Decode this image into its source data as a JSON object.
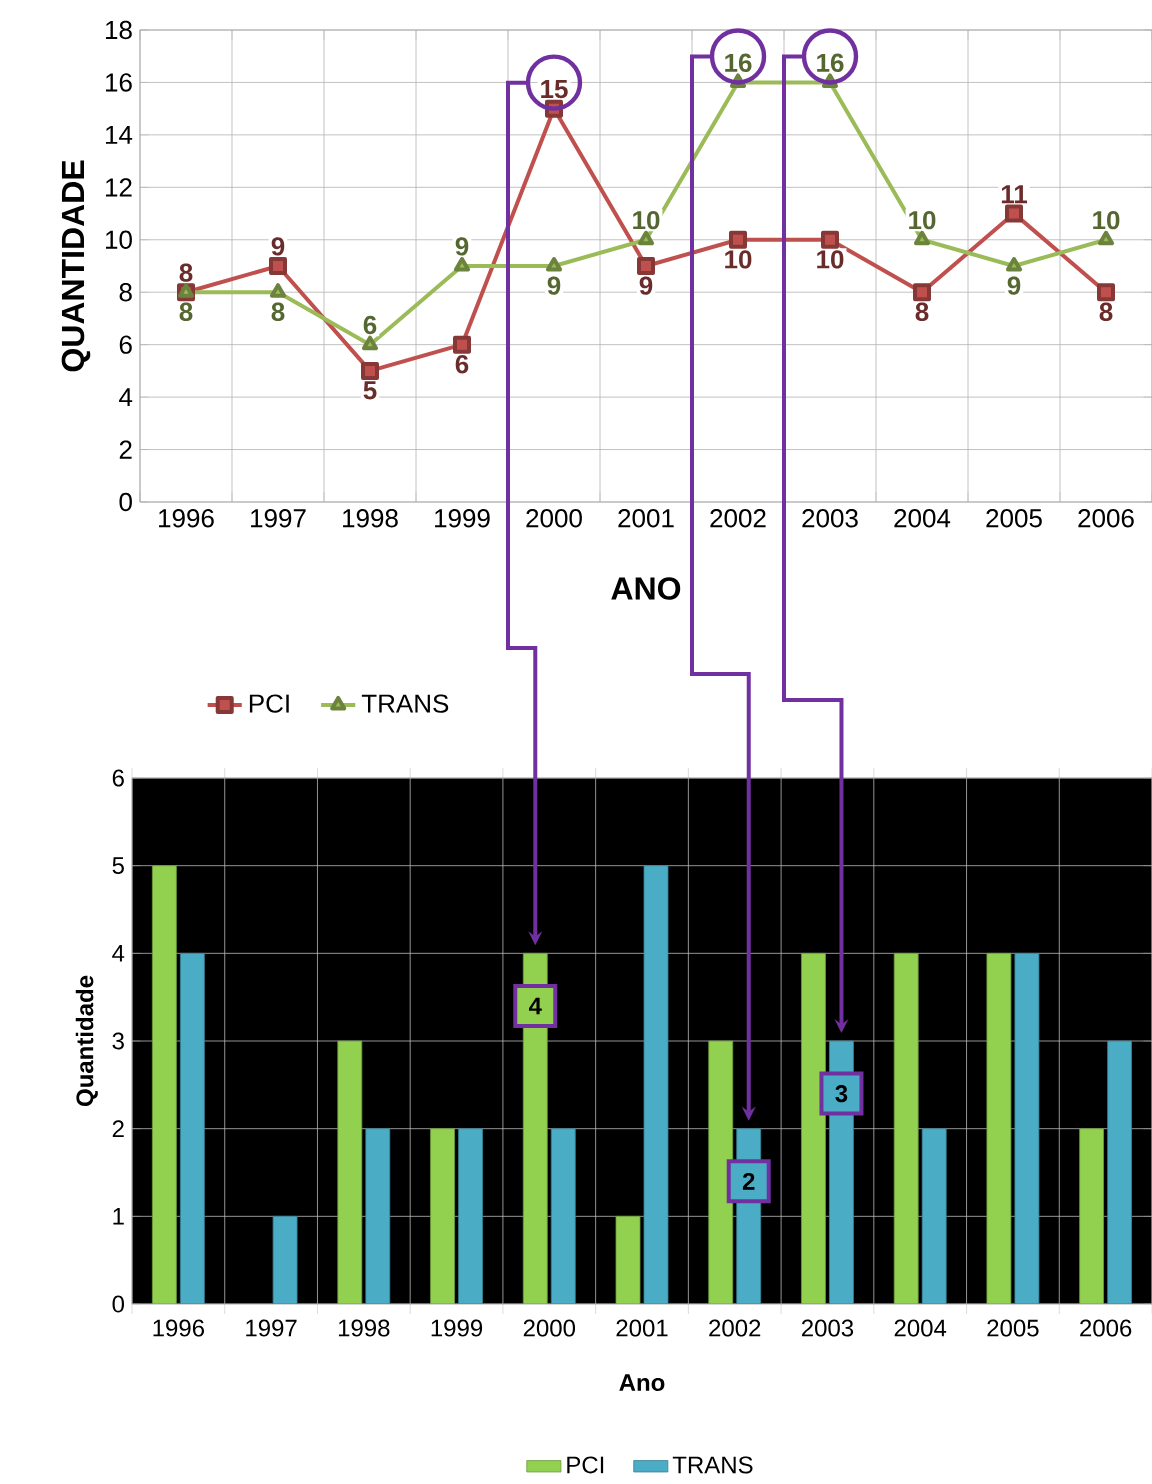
{
  "chart_data": [
    {
      "type": "line",
      "xlabel": "ANO",
      "ylabel": "QUANTIDADE",
      "categories": [
        "1996",
        "1997",
        "1998",
        "1999",
        "2000",
        "2001",
        "2002",
        "2003",
        "2004",
        "2005",
        "2006"
      ],
      "series": [
        {
          "name": "PCI",
          "color": "#c0504d",
          "marker": "square",
          "values": [
            8,
            9,
            5,
            6,
            15,
            9,
            10,
            10,
            8,
            11,
            8
          ]
        },
        {
          "name": "TRANS",
          "color": "#9bbb59",
          "marker": "triangle",
          "values": [
            8,
            8,
            6,
            9,
            9,
            10,
            16,
            16,
            10,
            9,
            10
          ]
        }
      ],
      "ylim": [
        0,
        18
      ],
      "yticks": [
        0,
        2,
        4,
        6,
        8,
        10,
        12,
        14,
        16,
        18
      ],
      "grid": true,
      "legend": "bottom",
      "data_labels": true
    },
    {
      "type": "bar",
      "xlabel": "Ano",
      "ylabel": "Quantidade",
      "categories": [
        "1996",
        "1997",
        "1998",
        "1999",
        "2000",
        "2001",
        "2002",
        "2003",
        "2004",
        "2005",
        "2006"
      ],
      "series": [
        {
          "name": "PCI",
          "color": "#92d050",
          "values": [
            5,
            null,
            3,
            2,
            4,
            1,
            3,
            4,
            4,
            4,
            2
          ]
        },
        {
          "name": "TRANS",
          "color": "#4bacc6",
          "values": [
            4,
            1,
            2,
            2,
            2,
            5,
            2,
            3,
            2,
            4,
            3
          ]
        }
      ],
      "ylim": [
        0,
        6
      ],
      "yticks": [
        0,
        1,
        2,
        3,
        4,
        5,
        6
      ],
      "grid": true,
      "legend": "bottom",
      "annotations": [
        {
          "text": "4",
          "x": "2000",
          "y": 3.4
        },
        {
          "text": "2",
          "x": "2002",
          "y": 1.4
        },
        {
          "text": "3",
          "x": "2003",
          "y": 2.4
        }
      ]
    }
  ]
}
